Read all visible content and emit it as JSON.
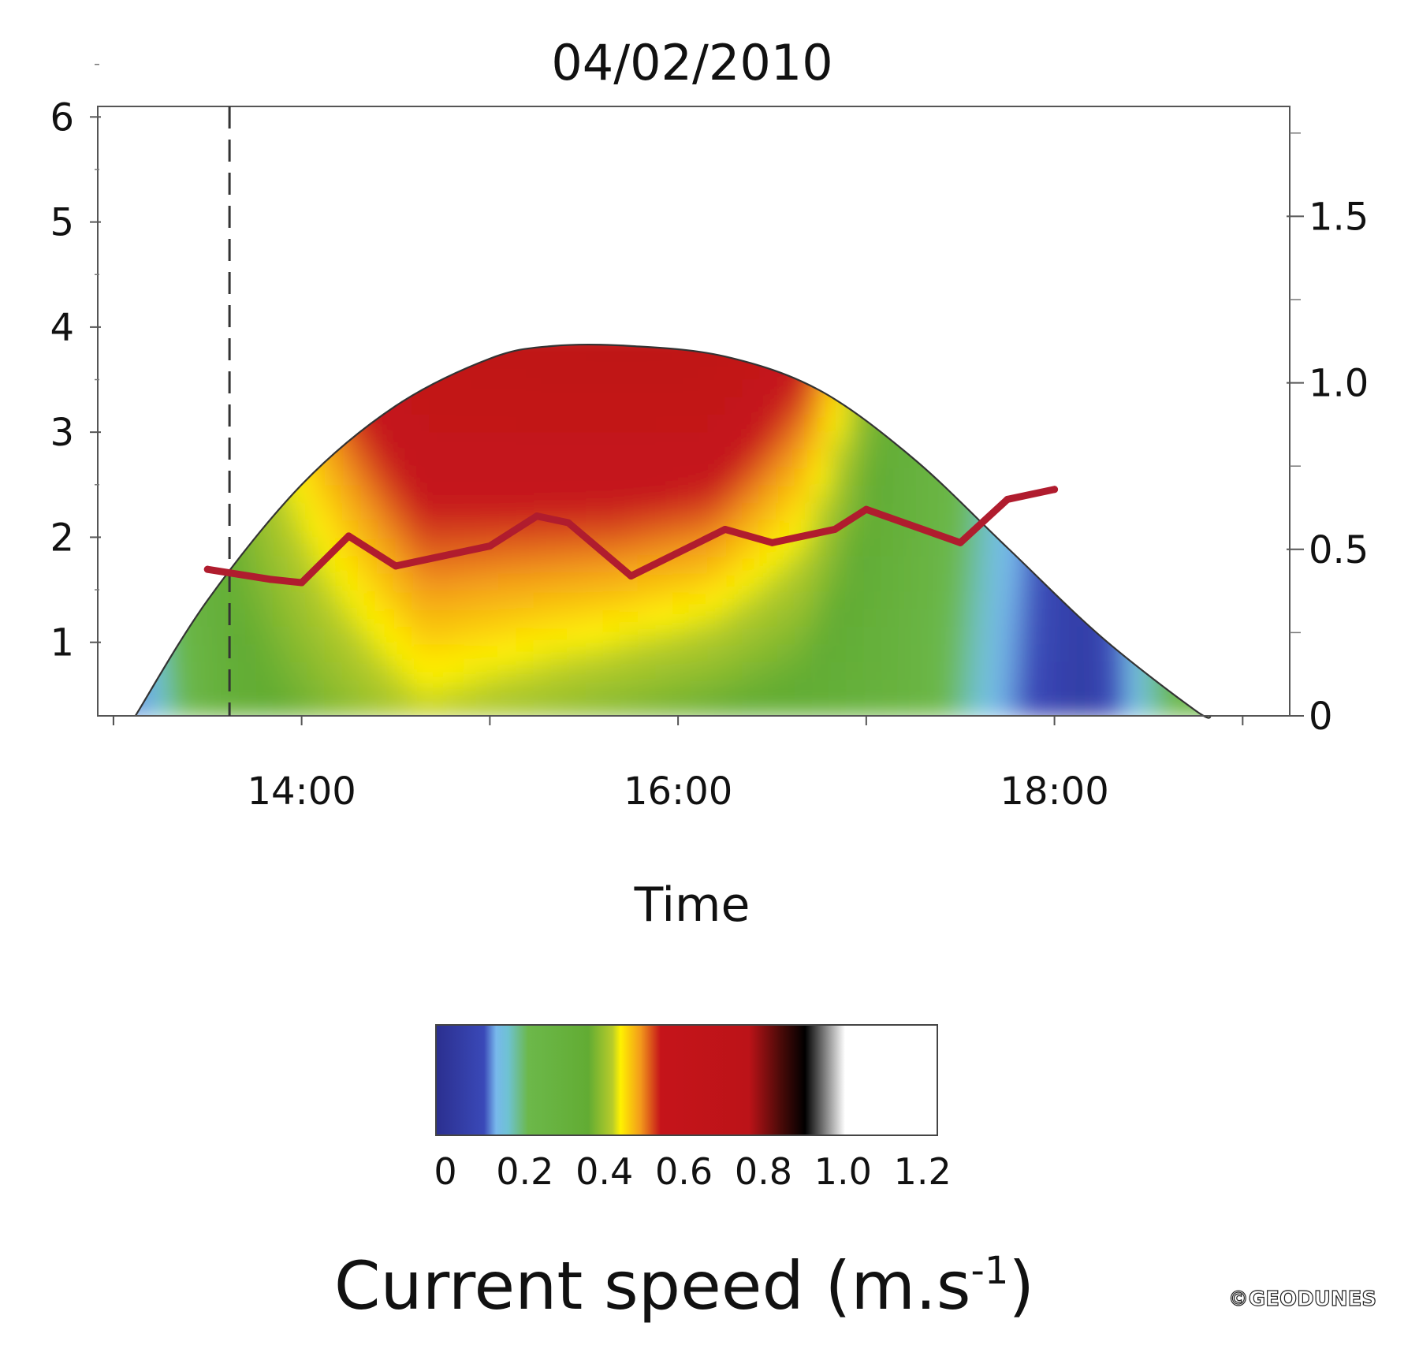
{
  "chart_data": {
    "type": "heatmap",
    "title": "04/02/2010",
    "xlabel": "Time",
    "x_axis": {
      "tick_labels": [
        "14:00",
        "16:00",
        "18:00"
      ],
      "tick_values": [
        "13:00",
        "14:00",
        "15:00",
        "16:00",
        "17:00",
        "18:00",
        "19:00"
      ]
    },
    "y_axis_left": {
      "label": "",
      "tick_labels": [
        "1",
        "2",
        "3",
        "4",
        "5",
        "6"
      ],
      "tick_values": [
        1,
        2,
        3,
        4,
        5,
        6
      ],
      "range": [
        0.3,
        6.1
      ]
    },
    "y_axis_right": {
      "label": "",
      "tick_labels": [
        "0",
        "0.5",
        "1.0",
        "1.5"
      ],
      "tick_values": [
        0,
        0.5,
        1.0,
        1.5
      ],
      "minor_ticks": [
        0.25,
        0.75,
        1.25,
        1.75
      ],
      "range": [
        0,
        1.83
      ]
    },
    "x_range": [
      "12:55",
      "19:15"
    ],
    "grid": false,
    "water_surface_envelope": {
      "times": [
        "13:07",
        "13:30",
        "14:00",
        "14:30",
        "15:00",
        "15:20",
        "15:45",
        "16:15",
        "16:45",
        "17:15",
        "17:45",
        "18:15",
        "18:45",
        "18:50"
      ],
      "heights": [
        0.3,
        1.4,
        2.5,
        3.25,
        3.7,
        3.82,
        3.82,
        3.72,
        3.4,
        2.75,
        1.9,
        1.05,
        0.35,
        0.3
      ]
    },
    "vertical_marker": {
      "time": "13:37",
      "style": "dashed"
    },
    "series": [
      {
        "color": "#b01c2e",
        "axis": "right",
        "x": [
          "13:30",
          "13:50",
          "14:00",
          "14:15",
          "14:30",
          "15:00",
          "15:15",
          "15:25",
          "15:45",
          "16:15",
          "16:30",
          "16:50",
          "17:00",
          "17:30",
          "17:45",
          "18:00"
        ],
        "values": [
          0.44,
          0.41,
          0.4,
          0.54,
          0.45,
          0.51,
          0.6,
          0.58,
          0.42,
          0.56,
          0.52,
          0.56,
          0.62,
          0.52,
          0.65,
          0.68
        ]
      }
    ],
    "colorbar": {
      "title": "Current speed (m.s",
      "title_superscript": "-1",
      "title_close": ")",
      "tick_labels": [
        "0",
        "0.2",
        "0.4",
        "0.6",
        "0.8",
        "1.0",
        "1.2"
      ],
      "tick_values": [
        0,
        0.2,
        0.4,
        0.6,
        0.8,
        1.0,
        1.2
      ],
      "range": [
        0,
        1.25
      ],
      "stops": [
        {
          "value": 0.0,
          "color": "#2b2f8f"
        },
        {
          "value": 0.12,
          "color": "#3a49b8"
        },
        {
          "value": 0.15,
          "color": "#78b8ec"
        },
        {
          "value": 0.18,
          "color": "#6ec2d2"
        },
        {
          "value": 0.23,
          "color": "#6cb84a"
        },
        {
          "value": 0.38,
          "color": "#62ac33"
        },
        {
          "value": 0.44,
          "color": "#b8cc2a"
        },
        {
          "value": 0.46,
          "color": "#fff200"
        },
        {
          "value": 0.51,
          "color": "#f39a1b"
        },
        {
          "value": 0.56,
          "color": "#c5141a"
        },
        {
          "value": 0.78,
          "color": "#bc1318"
        },
        {
          "value": 0.86,
          "color": "#4a0a08"
        },
        {
          "value": 0.92,
          "color": "#000000"
        },
        {
          "value": 1.02,
          "color": "#ffffff"
        },
        {
          "value": 1.25,
          "color": "#ffffff"
        }
      ]
    },
    "speed_field": {
      "description_times": [
        "13:10",
        "13:40",
        "14:10",
        "14:40",
        "15:10",
        "15:40",
        "16:10",
        "16:40",
        "17:10",
        "17:40",
        "18:10",
        "18:40"
      ],
      "surface_speed": [
        0.22,
        0.45,
        0.58,
        0.7,
        0.72,
        0.74,
        0.73,
        0.6,
        0.38,
        0.2,
        0.08,
        0.27
      ],
      "bottom_speed": [
        0.14,
        0.36,
        0.4,
        0.44,
        0.42,
        0.4,
        0.38,
        0.36,
        0.3,
        0.16,
        0.06,
        0.25
      ]
    }
  },
  "credit": "©GEODUNES"
}
